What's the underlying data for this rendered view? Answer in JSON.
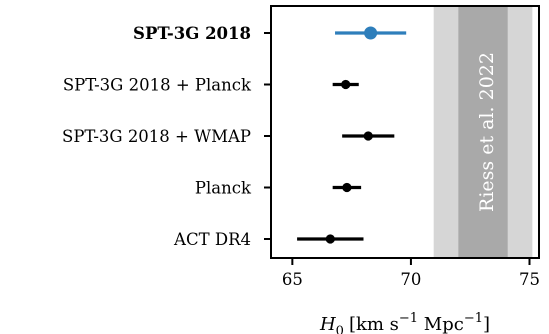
{
  "chart_data": {
    "type": "scatter",
    "subtype": "forest-plot-errorbars",
    "xlabel_base": "H",
    "xlabel_sub": "0",
    "xlabel_units": "[km s",
    "xlabel_exp1": "−1",
    "xlabel_mid": " Mpc",
    "xlabel_exp2": "−1",
    "xlabel_end": "]",
    "xlim": [
      64.1,
      75.4
    ],
    "xticks": [
      65,
      70,
      75
    ],
    "xtick_labels": [
      "65",
      "70",
      "75"
    ],
    "grid": false,
    "rows": [
      {
        "label": "SPT-3G 2018",
        "center": 68.3,
        "low": 66.8,
        "high": 69.8,
        "color": "#2e7ebb",
        "bold": true
      },
      {
        "label": "SPT-3G 2018 + Planck",
        "center": 67.25,
        "low": 66.7,
        "high": 67.8,
        "color": "#000000",
        "bold": false
      },
      {
        "label": "SPT-3G 2018 + WMAP",
        "center": 68.2,
        "low": 67.1,
        "high": 69.3,
        "color": "#000000",
        "bold": false
      },
      {
        "label": "Planck",
        "center": 67.3,
        "low": 66.7,
        "high": 67.9,
        "color": "#000000",
        "bold": false
      },
      {
        "label": "ACT DR4",
        "center": 66.6,
        "low": 65.2,
        "high": 68.0,
        "color": "#000000",
        "bold": false
      }
    ],
    "reference_band": {
      "label": "Riess et al. 2022",
      "center": 73.04,
      "sigma1": [
        72.0,
        74.08
      ],
      "sigma2": [
        70.96,
        75.12
      ],
      "color_inner": "#a9a9a9",
      "color_outer": "#d6d6d6"
    }
  }
}
